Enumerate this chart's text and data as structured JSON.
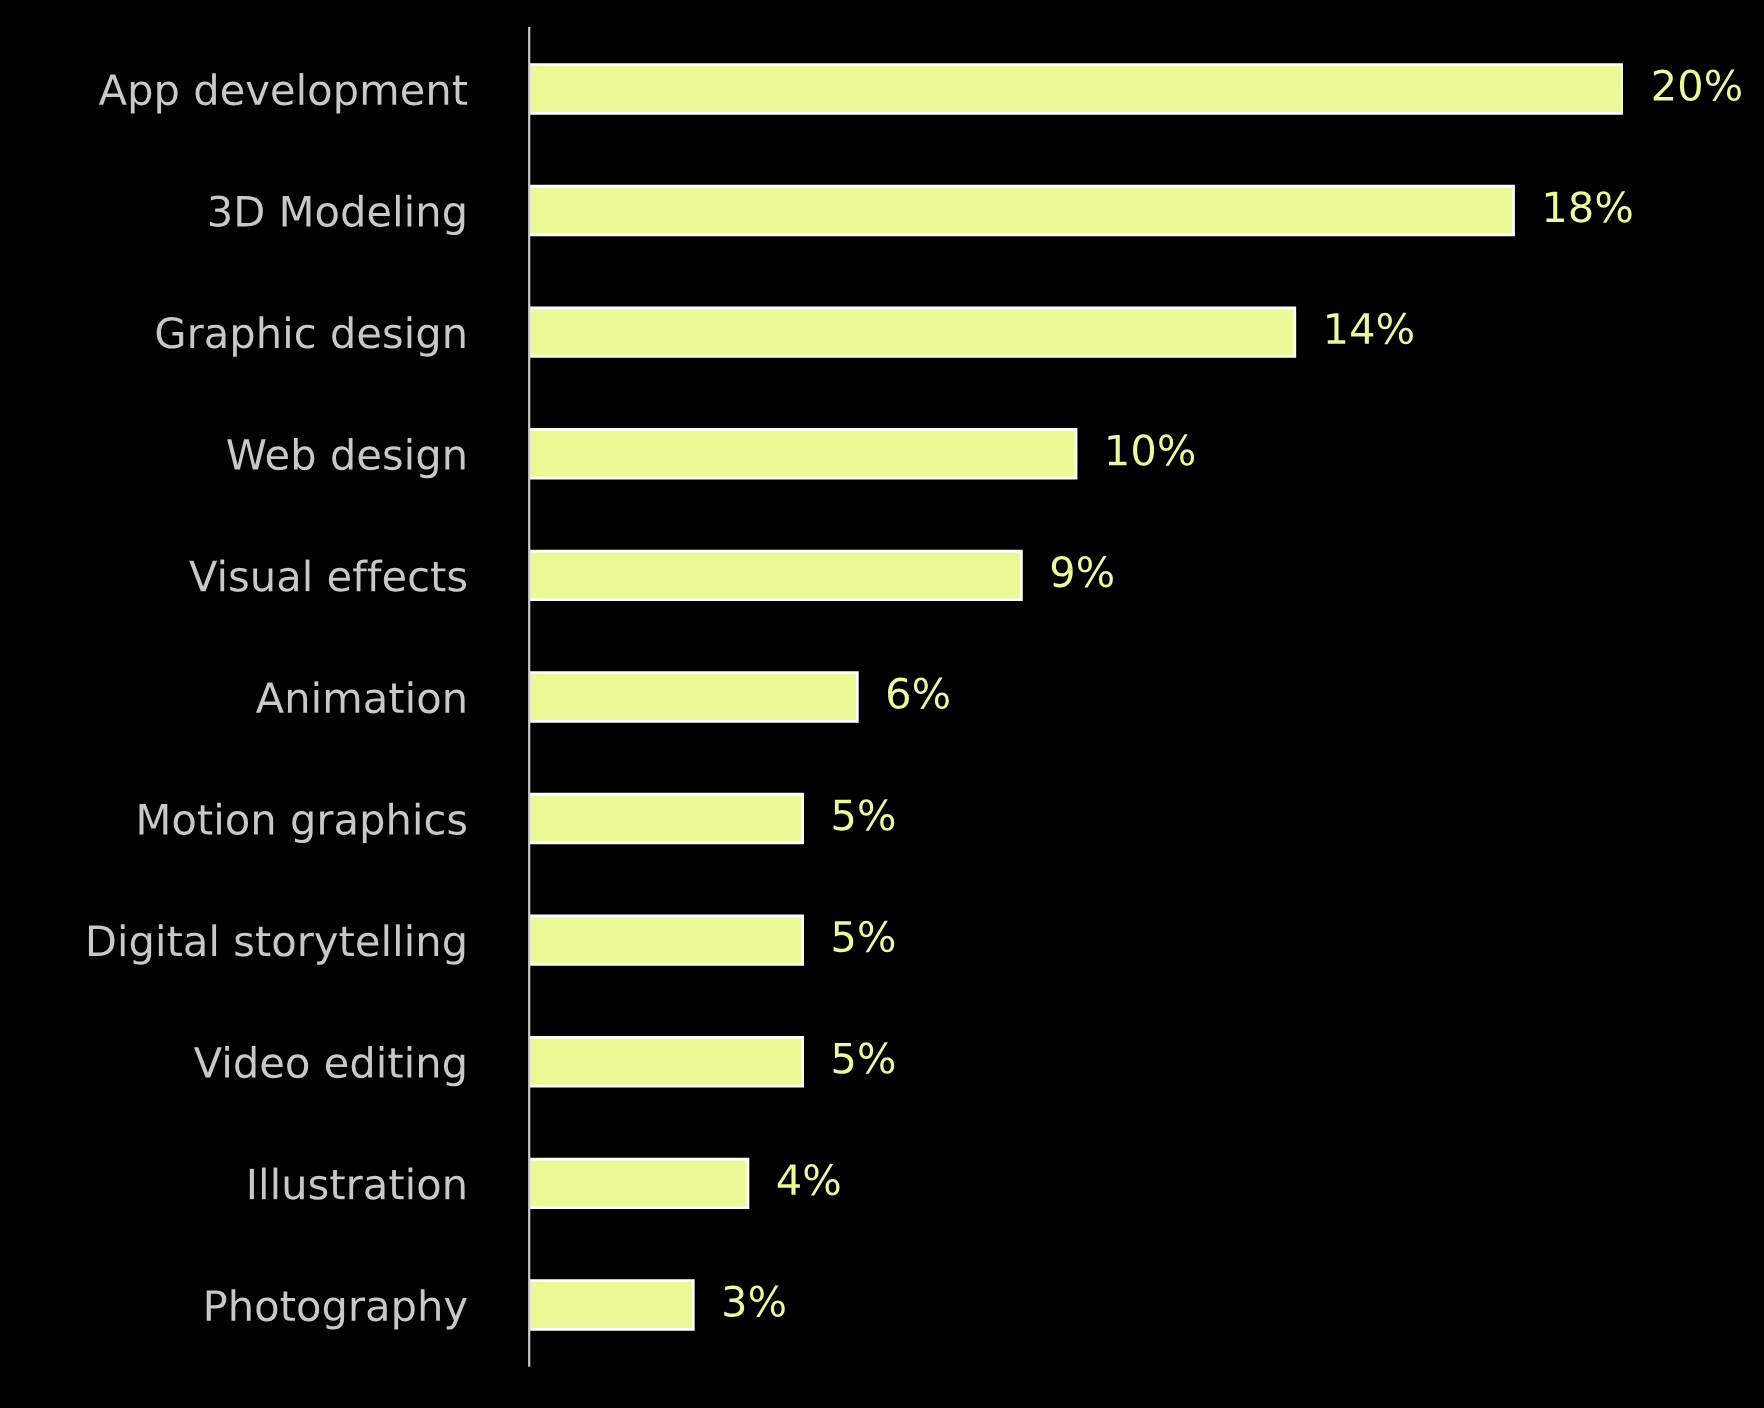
{
  "chart_data": {
    "type": "bar",
    "orientation": "horizontal",
    "categories": [
      "App development",
      "3D Modeling",
      "Graphic design",
      "Web design",
      "Visual effects",
      "Animation",
      "Motion graphics",
      "Digital storytelling",
      "Video editing",
      "Illustration",
      "Photography"
    ],
    "values": [
      20,
      18,
      14,
      10,
      9,
      6,
      5,
      5,
      5,
      4,
      3
    ],
    "color": "#ecfa96",
    "data_labels": true,
    "value_labels": [
      "20%",
      "18%",
      "14%",
      "10%",
      "9%",
      "6%",
      "5%",
      "5%",
      "5%",
      "4%",
      "3%"
    ]
  }
}
